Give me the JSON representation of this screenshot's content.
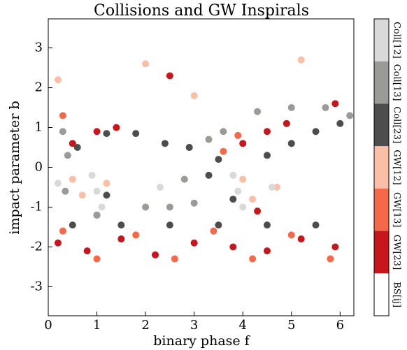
{
  "chart_data": {
    "type": "scatter",
    "title": "Collisions and GW Inspirals",
    "x_label": "binary phase f",
    "y_label": "impact parameter b",
    "xlim": [
      0,
      6.283
    ],
    "ylim": [
      -3.73,
      3.73
    ],
    "xticks": [
      0,
      1,
      2,
      3,
      4,
      5,
      6
    ],
    "yticks": [
      -3,
      -2,
      -1,
      0,
      1,
      2,
      3
    ],
    "series": [
      {
        "name": "BS[ij]",
        "color": "#ffffff",
        "x": [],
        "y": []
      },
      {
        "name": "GW[23]",
        "color": "#c8161d",
        "x": [
          0.2,
          0.8,
          1.5,
          2.2,
          3.0,
          3.8,
          4.5,
          5.2,
          5.9,
          0.5,
          1.0,
          1.4,
          4.0,
          4.5,
          4.9,
          2.5,
          5.9,
          1.0,
          4.3
        ],
        "y": [
          -1.9,
          -2.1,
          -1.8,
          -2.2,
          -1.9,
          -2.0,
          -2.1,
          -1.8,
          -2.0,
          0.6,
          0.9,
          1.0,
          0.6,
          0.9,
          1.1,
          2.3,
          1.6,
          -1.2,
          -1.1
        ]
      },
      {
        "name": "GW[13]",
        "color": "#f4694a",
        "x": [
          0.3,
          1.0,
          1.8,
          2.6,
          3.4,
          4.2,
          5.0,
          5.8,
          3.6,
          3.9,
          0.3,
          2.9
        ],
        "y": [
          -1.6,
          -2.3,
          -1.7,
          -2.3,
          -1.6,
          -2.3,
          -1.7,
          -2.3,
          0.4,
          0.8,
          1.3,
          0.5
        ]
      },
      {
        "name": "GW[12]",
        "color": "#fbbfa8",
        "x": [
          0.5,
          0.7,
          1.2,
          4.0,
          4.2,
          4.7,
          2.0,
          5.2,
          0.2,
          3.0
        ],
        "y": [
          -0.3,
          -0.7,
          -0.4,
          -0.3,
          -0.8,
          -0.5,
          2.6,
          2.7,
          2.2,
          1.8
        ]
      },
      {
        "name": "Coll[23]",
        "color": "#4d4d4d",
        "x": [
          0.6,
          1.2,
          1.8,
          2.4,
          2.9,
          4.5,
          5.0,
          5.5,
          6.0,
          0.5,
          1.5,
          2.5,
          3.5,
          4.5,
          5.5,
          3.3,
          3.5,
          3.8,
          1.2
        ],
        "y": [
          0.5,
          0.85,
          0.85,
          0.6,
          0.5,
          0.3,
          0.6,
          0.9,
          1.1,
          -1.45,
          -1.45,
          -1.45,
          -1.45,
          -1.45,
          -1.45,
          -0.2,
          0.2,
          -0.8,
          -0.7
        ]
      },
      {
        "name": "Coll[13]",
        "color": "#9a9a96",
        "x": [
          0.3,
          0.4,
          0.35,
          3.3,
          3.6,
          4.3,
          5.0,
          5.7,
          6.2,
          1.0,
          2.0,
          3.0,
          2.5,
          2.8
        ],
        "y": [
          0.9,
          0.3,
          -0.6,
          0.7,
          0.9,
          1.4,
          1.5,
          1.5,
          1.3,
          -1.2,
          -1.0,
          -0.9,
          -1.0,
          -0.3
        ]
      },
      {
        "name": "Coll[12]",
        "color": "#d9d9d9",
        "x": [
          0.9,
          1.0,
          1.1,
          3.8,
          3.9,
          4.0,
          0.2,
          2.3,
          4.6
        ],
        "y": [
          -0.2,
          -0.6,
          -1.0,
          -0.2,
          -0.6,
          -1.0,
          -0.4,
          -0.5,
          -0.5
        ]
      }
    ]
  }
}
